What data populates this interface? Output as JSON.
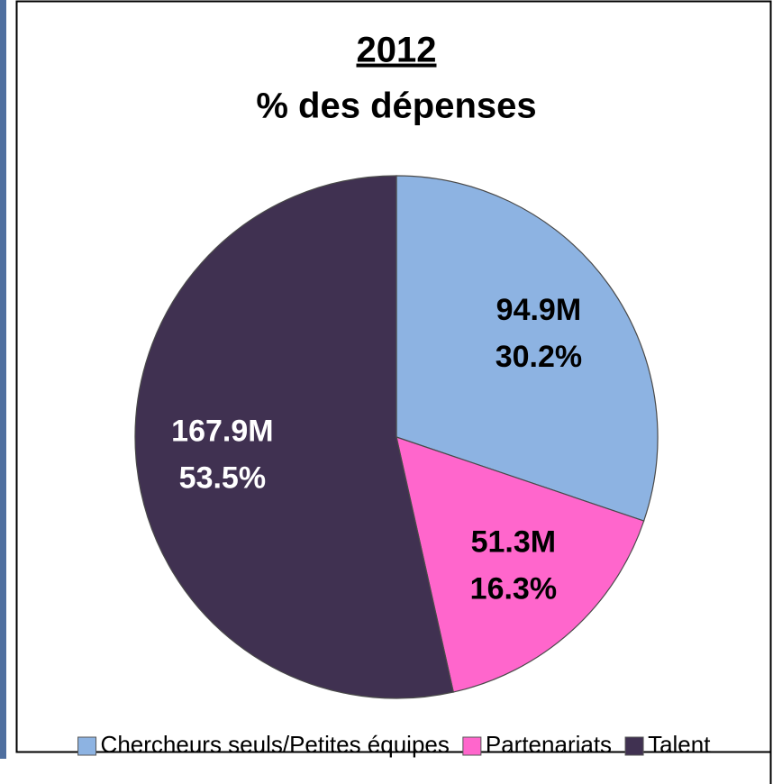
{
  "chart_data": {
    "type": "pie",
    "title": "2012",
    "subtitle": "% des dépenses",
    "categories": [
      "Chercheurs seuls/Petites équipes",
      "Partenariats",
      "Talent"
    ],
    "values": [
      30.2,
      16.3,
      53.5
    ],
    "value_labels": [
      "30.2%",
      "16.3%",
      "53.5%"
    ],
    "amount_labels": [
      "94.9M",
      "51.3M",
      "167.9M"
    ],
    "colors": [
      "#8db3e2",
      "#ff66cc",
      "#403151"
    ],
    "legend": "bottom"
  }
}
